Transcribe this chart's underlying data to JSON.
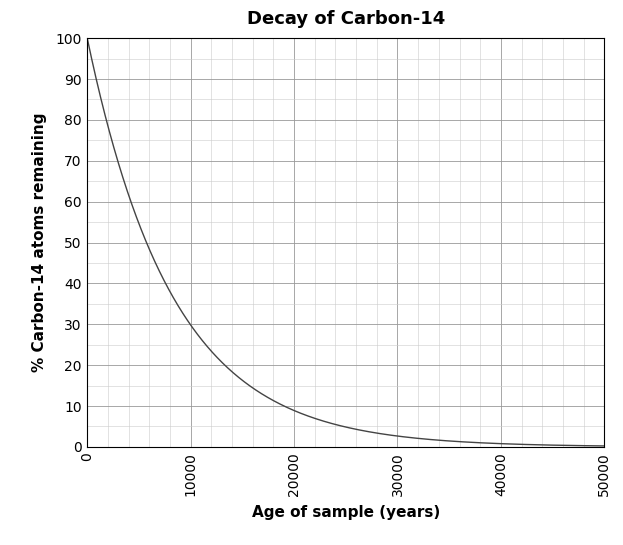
{
  "title": "Decay of Carbon-14",
  "xlabel": "Age of sample (years)",
  "ylabel": "% Carbon-14 atoms remaining",
  "half_life": 5730,
  "xlim": [
    0,
    50000
  ],
  "ylim": [
    0,
    100
  ],
  "xticks": [
    0,
    10000,
    20000,
    30000,
    40000,
    50000
  ],
  "yticks": [
    0,
    10,
    20,
    30,
    40,
    50,
    60,
    70,
    80,
    90,
    100
  ],
  "x_minor_spacing": 2000,
  "y_minor_spacing": 5,
  "line_color": "#444444",
  "line_width": 1.0,
  "background_color": "#ffffff",
  "grid_major_color": "#999999",
  "grid_minor_color": "#cccccc",
  "grid_major_lw": 0.6,
  "grid_minor_lw": 0.4,
  "title_fontsize": 13,
  "label_fontsize": 11,
  "tick_fontsize": 10,
  "x_tick_rotation": 90
}
